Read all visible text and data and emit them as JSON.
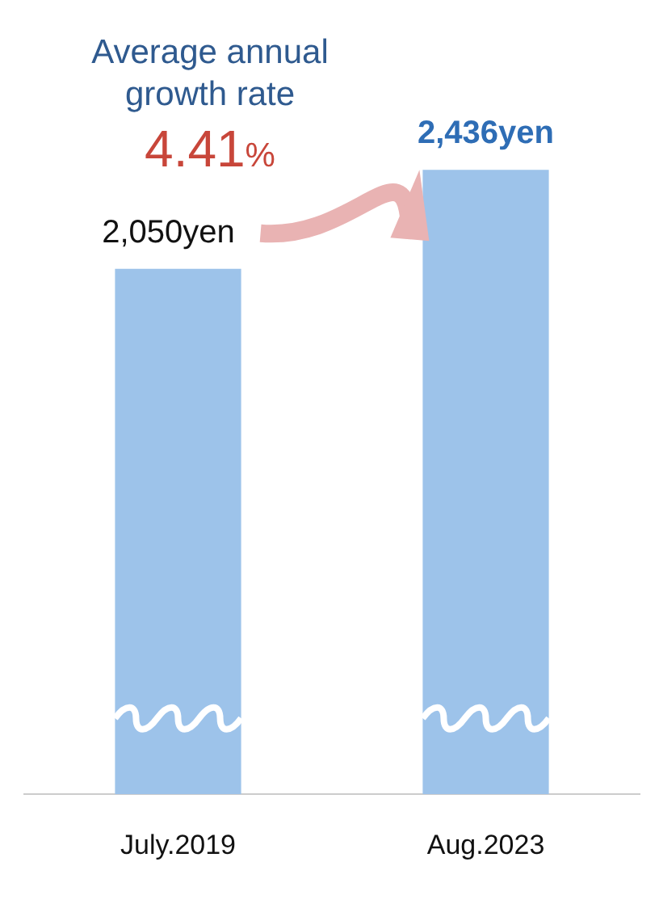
{
  "chart_data": {
    "type": "bar",
    "categories": [
      "July.2019",
      "Aug.2023"
    ],
    "values": [
      2050,
      2436
    ],
    "value_labels": [
      "2,050yen",
      "2,436yen"
    ],
    "color": "#9dc3ea",
    "tick_labels": "x",
    "grid": false,
    "legend": false,
    "annotations": [
      "Average annual growth rate",
      "4.41%"
    ]
  }
}
